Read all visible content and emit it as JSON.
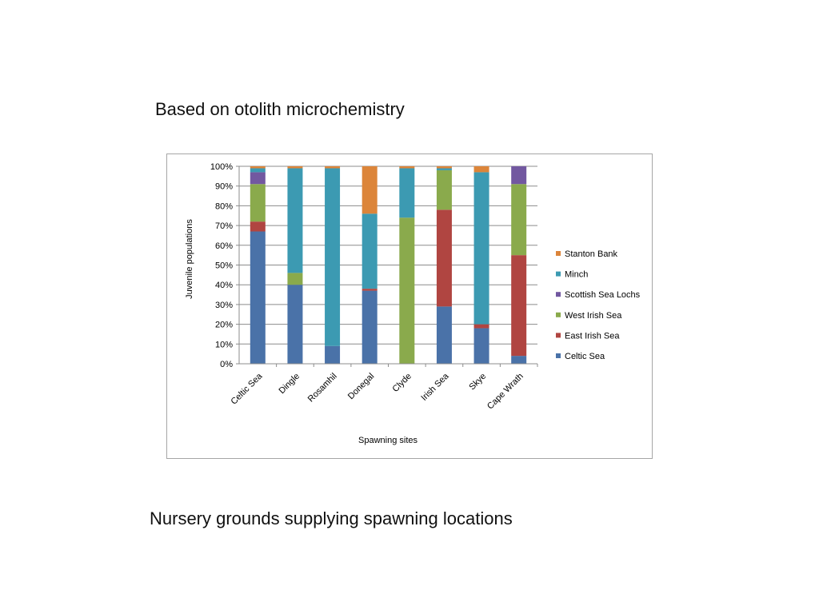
{
  "slide": {
    "title": "Based on otolith microchemistry",
    "caption": "Nursery grounds supplying spawning locations"
  },
  "chart_data": {
    "type": "bar",
    "stacked": true,
    "percent": true,
    "title": "",
    "xlabel": "Spawning sites",
    "ylabel": "Juvenile populations",
    "ylim": [
      0,
      100
    ],
    "yticks": [
      "0%",
      "10%",
      "20%",
      "30%",
      "40%",
      "50%",
      "60%",
      "70%",
      "80%",
      "90%",
      "100%"
    ],
    "grid": true,
    "legend_position": "right",
    "categories": [
      "Celtic Sea",
      "Dingle",
      "Rosamhil",
      "Donegal",
      "Clyde",
      "Irish Sea",
      "Skye",
      "Cape Wrath"
    ],
    "series": [
      {
        "name": "Celtic Sea",
        "color": "#4a72a8",
        "values": [
          67,
          40,
          9,
          37,
          0,
          29,
          18,
          4
        ]
      },
      {
        "name": "East Irish Sea",
        "color": "#b04541",
        "values": [
          5,
          0,
          0,
          1,
          0,
          49,
          2,
          51
        ]
      },
      {
        "name": "West Irish Sea",
        "color": "#8aaa4c",
        "values": [
          19,
          6,
          0,
          0,
          74,
          20,
          0,
          36
        ]
      },
      {
        "name": "Scottish Sea Lochs",
        "color": "#7258a0",
        "values": [
          6,
          0,
          0,
          0,
          0,
          0,
          0,
          9
        ]
      },
      {
        "name": "Minch",
        "color": "#3c9ab2",
        "values": [
          2,
          53,
          90,
          38,
          25,
          1,
          77,
          0
        ]
      },
      {
        "name": "Stanton Bank",
        "color": "#dc853a",
        "values": [
          1,
          1,
          1,
          24,
          1,
          1,
          3,
          0
        ]
      }
    ]
  }
}
